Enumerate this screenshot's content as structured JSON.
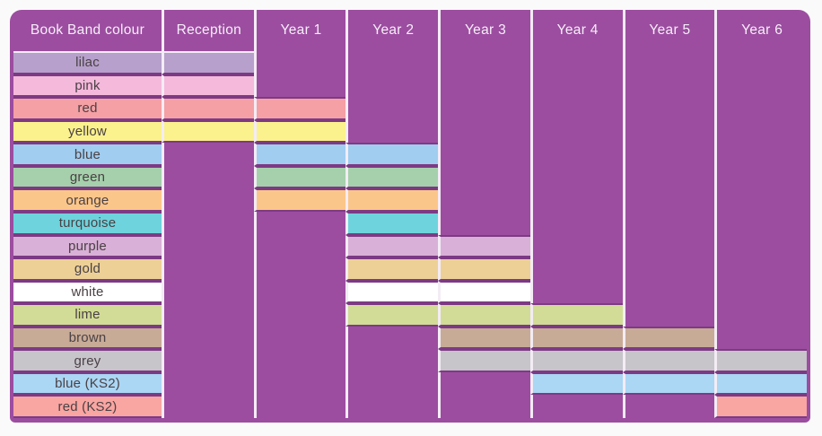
{
  "header": {
    "corner_label": "Book Band colour"
  },
  "chart_data": {
    "type": "table",
    "title": "Book Band colour",
    "columns": [
      "Reception",
      "Year 1",
      "Year 2",
      "Year 3",
      "Year 4",
      "Year 5",
      "Year 6"
    ],
    "rows": [
      {
        "band": "lilac",
        "color": "#b7a0cb",
        "start_col": "Reception",
        "end_col": "Reception"
      },
      {
        "band": "pink",
        "color": "#f5b9dc",
        "start_col": "Reception",
        "end_col": "Reception"
      },
      {
        "band": "red",
        "color": "#f5a0a4",
        "start_col": "Reception",
        "end_col": "Year 1"
      },
      {
        "band": "yellow",
        "color": "#fbf18d",
        "start_col": "Reception",
        "end_col": "Year 1"
      },
      {
        "band": "blue",
        "color": "#a0cdf0",
        "start_col": "Year 1",
        "end_col": "Year 2"
      },
      {
        "band": "green",
        "color": "#a5d0ab",
        "start_col": "Year 1",
        "end_col": "Year 2"
      },
      {
        "band": "orange",
        "color": "#fbc689",
        "start_col": "Year 1",
        "end_col": "Year 2"
      },
      {
        "band": "turquoise",
        "color": "#6ed3dc",
        "start_col": "Year 2",
        "end_col": "Year 2"
      },
      {
        "band": "purple",
        "color": "#d9b0d7",
        "start_col": "Year 2",
        "end_col": "Year 3"
      },
      {
        "band": "gold",
        "color": "#edd096",
        "start_col": "Year 2",
        "end_col": "Year 3"
      },
      {
        "band": "white",
        "color": "#ffffff",
        "start_col": "Year 2",
        "end_col": "Year 3"
      },
      {
        "band": "lime",
        "color": "#d2dc96",
        "start_col": "Year 2",
        "end_col": "Year 4"
      },
      {
        "band": "brown",
        "color": "#c8ab97",
        "start_col": "Year 3",
        "end_col": "Year 5"
      },
      {
        "band": "grey",
        "color": "#c7c4ca",
        "start_col": "Year 3",
        "end_col": "Year 6"
      },
      {
        "band": "blue (KS2)",
        "color": "#abd6f4",
        "start_col": "Year 4",
        "end_col": "Year 6"
      },
      {
        "band": "red (KS2)",
        "color": "#f9a5a1",
        "start_col": "Year 6",
        "end_col": "Year 6"
      }
    ]
  },
  "colors": {
    "page_background": "#fafafa",
    "board_purple": "#9c4da0",
    "row_divider_dark": "#7d3a84",
    "column_gridline": "#f3ecf5",
    "header_text": "#f6eef8",
    "label_text": "#4a4145"
  }
}
